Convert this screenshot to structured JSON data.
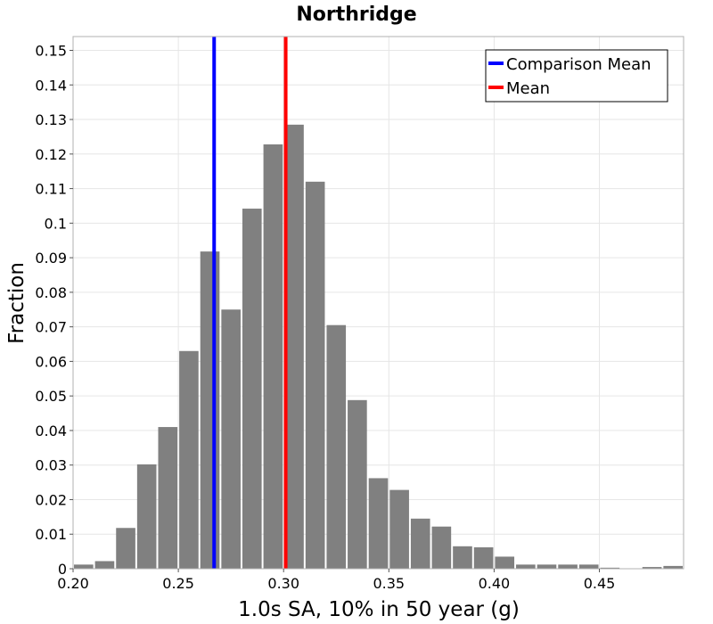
{
  "chart_data": {
    "type": "bar",
    "title": "Northridge",
    "xlabel": "1.0s SA, 10% in 50 year (g)",
    "ylabel": "Fraction",
    "xlim": [
      0.2,
      0.49
    ],
    "ylim": [
      0,
      0.154
    ],
    "bin_width": 0.01,
    "x_ticks": [
      {
        "value": 0.2,
        "label": "0.20"
      },
      {
        "value": 0.25,
        "label": "0.25"
      },
      {
        "value": 0.3,
        "label": "0.30"
      },
      {
        "value": 0.35,
        "label": "0.35"
      },
      {
        "value": 0.4,
        "label": "0.40"
      },
      {
        "value": 0.45,
        "label": "0.45"
      }
    ],
    "y_ticks": [
      {
        "value": 0,
        "label": "0"
      },
      {
        "value": 0.01,
        "label": "0.01"
      },
      {
        "value": 0.02,
        "label": "0.02"
      },
      {
        "value": 0.03,
        "label": "0.03"
      },
      {
        "value": 0.04,
        "label": "0.04"
      },
      {
        "value": 0.05,
        "label": "0.05"
      },
      {
        "value": 0.06,
        "label": "0.06"
      },
      {
        "value": 0.07,
        "label": "0.07"
      },
      {
        "value": 0.08,
        "label": "0.08"
      },
      {
        "value": 0.09,
        "label": "0.09"
      },
      {
        "value": 0.1,
        "label": "0.1"
      },
      {
        "value": 0.11,
        "label": "0.11"
      },
      {
        "value": 0.12,
        "label": "0.12"
      },
      {
        "value": 0.13,
        "label": "0.13"
      },
      {
        "value": 0.14,
        "label": "0.14"
      },
      {
        "value": 0.15,
        "label": "0.15"
      }
    ],
    "bins": [
      {
        "x": 0.2,
        "value": 0.0012
      },
      {
        "x": 0.21,
        "value": 0.0022
      },
      {
        "x": 0.22,
        "value": 0.0118
      },
      {
        "x": 0.23,
        "value": 0.0302
      },
      {
        "x": 0.24,
        "value": 0.041
      },
      {
        "x": 0.25,
        "value": 0.063
      },
      {
        "x": 0.26,
        "value": 0.0918
      },
      {
        "x": 0.27,
        "value": 0.075
      },
      {
        "x": 0.28,
        "value": 0.1042
      },
      {
        "x": 0.29,
        "value": 0.1228
      },
      {
        "x": 0.3,
        "value": 0.1285
      },
      {
        "x": 0.31,
        "value": 0.112
      },
      {
        "x": 0.32,
        "value": 0.0705
      },
      {
        "x": 0.33,
        "value": 0.0488
      },
      {
        "x": 0.34,
        "value": 0.0262
      },
      {
        "x": 0.35,
        "value": 0.0228
      },
      {
        "x": 0.36,
        "value": 0.0145
      },
      {
        "x": 0.37,
        "value": 0.0122
      },
      {
        "x": 0.38,
        "value": 0.0065
      },
      {
        "x": 0.39,
        "value": 0.0062
      },
      {
        "x": 0.4,
        "value": 0.0035
      },
      {
        "x": 0.41,
        "value": 0.0012
      },
      {
        "x": 0.42,
        "value": 0.0012
      },
      {
        "x": 0.43,
        "value": 0.0012
      },
      {
        "x": 0.44,
        "value": 0.0012
      },
      {
        "x": 0.45,
        "value": 0.0003
      },
      {
        "x": 0.46,
        "value": 0.0001
      },
      {
        "x": 0.47,
        "value": 0.0005
      },
      {
        "x": 0.48,
        "value": 0.0008
      }
    ],
    "bar_color": "#808080",
    "reference_lines": [
      {
        "name": "Comparison Mean",
        "x": 0.267,
        "color": "#0000ff"
      },
      {
        "name": "Mean",
        "x": 0.301,
        "color": "#ff0000"
      }
    ],
    "grid": true,
    "legend_position": "top-right"
  }
}
